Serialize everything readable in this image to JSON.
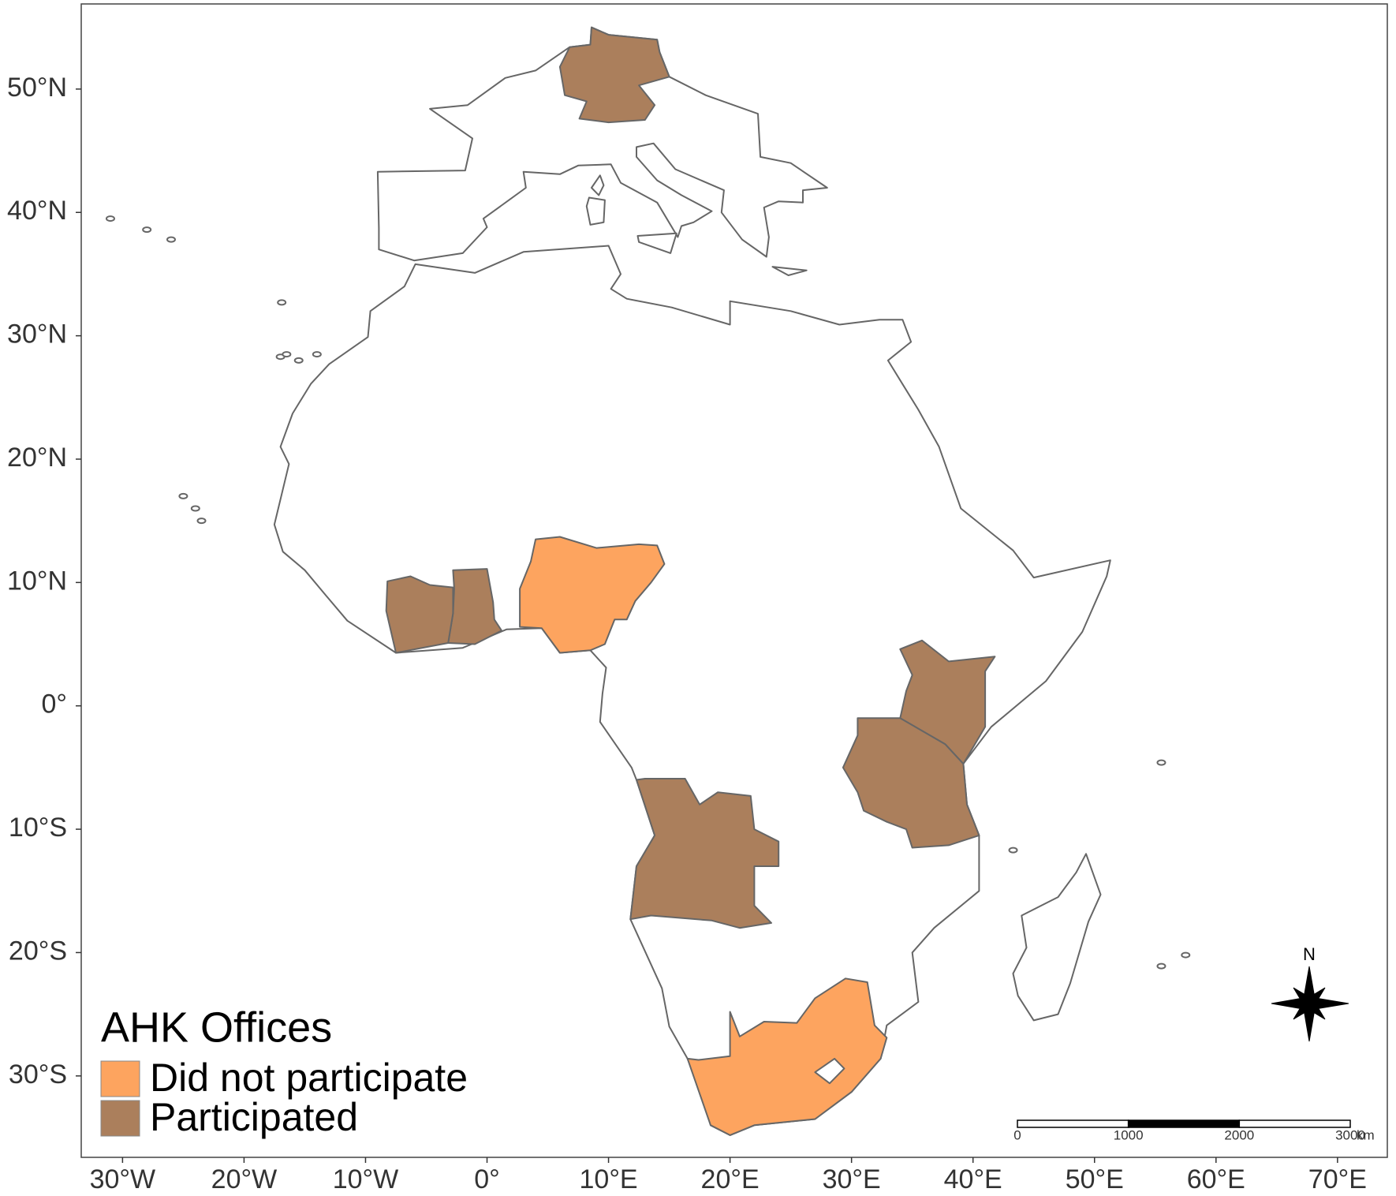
{
  "map": {
    "xlim": [
      -33.4,
      74.1
    ],
    "ylim": [
      -36.6,
      56.9
    ],
    "xticks": [
      {
        "value": -30,
        "label": "30°W"
      },
      {
        "value": -20,
        "label": "20°W"
      },
      {
        "value": -10,
        "label": "10°W"
      },
      {
        "value": 0,
        "label": "0°"
      },
      {
        "value": 10,
        "label": "10°E"
      },
      {
        "value": 20,
        "label": "20°E"
      },
      {
        "value": 30,
        "label": "30°E"
      },
      {
        "value": 40,
        "label": "40°E"
      },
      {
        "value": 50,
        "label": "50°E"
      },
      {
        "value": 60,
        "label": "60°E"
      },
      {
        "value": 70,
        "label": "70°E"
      }
    ],
    "yticks": [
      {
        "value": -30,
        "label": "30°S"
      },
      {
        "value": -20,
        "label": "20°S"
      },
      {
        "value": -10,
        "label": "10°S"
      },
      {
        "value": 0,
        "label": "0°"
      },
      {
        "value": 10,
        "label": "10°N"
      },
      {
        "value": 20,
        "label": "20°N"
      },
      {
        "value": 30,
        "label": "30°N"
      },
      {
        "value": 40,
        "label": "40°N"
      },
      {
        "value": 50,
        "label": "50°N"
      }
    ],
    "legend": {
      "title": "AHK Offices",
      "items": [
        {
          "name": "Did not participate",
          "color": "#fda45f"
        },
        {
          "name": "Participated",
          "color": "#ab7f5c"
        }
      ]
    },
    "scale_bar": {
      "labels": [
        "0",
        "1000",
        "2000",
        "3000"
      ],
      "unit": "km"
    },
    "north": "N"
  }
}
